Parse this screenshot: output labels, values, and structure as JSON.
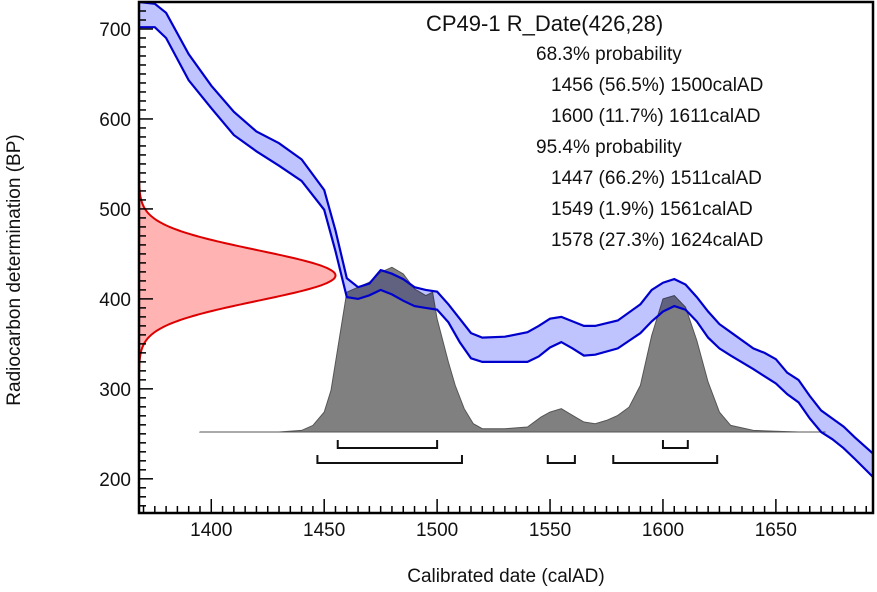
{
  "chart_data": {
    "type": "area",
    "title": "CP49-1 R_Date(426,28)",
    "xlabel": "Calibrated date (calAD)",
    "ylabel": "Radiocarbon determination (BP)",
    "xlim": [
      1368,
      1693
    ],
    "ylim": [
      162,
      730
    ],
    "x_ticks": [
      1400,
      1450,
      1500,
      1550,
      1600,
      1650
    ],
    "y_ticks": [
      200,
      300,
      400,
      500,
      600,
      700
    ],
    "grid": false,
    "measurement": {
      "name": "R_Date",
      "mean_bp": 426,
      "sigma_bp": 28,
      "color": "#dd0000",
      "fill": "#ffb3b3"
    },
    "calibration_curve": {
      "color": "#0000cc",
      "fill": "#aab0ff",
      "x": [
        1368,
        1375,
        1380,
        1390,
        1400,
        1410,
        1420,
        1430,
        1440,
        1450,
        1455,
        1460,
        1465,
        1470,
        1475,
        1480,
        1485,
        1490,
        1495,
        1500,
        1505,
        1510,
        1515,
        1520,
        1530,
        1540,
        1545,
        1550,
        1555,
        1560,
        1565,
        1570,
        1580,
        1590,
        1595,
        1600,
        1605,
        1610,
        1615,
        1620,
        1625,
        1630,
        1640,
        1645,
        1650,
        1655,
        1660,
        1665,
        1670,
        1675,
        1680,
        1685,
        1693
      ],
      "upper": [
        730,
        728,
        718,
        672,
        637,
        608,
        586,
        573,
        555,
        521,
        476,
        423,
        413,
        417,
        432,
        428,
        422,
        413,
        410,
        408,
        394,
        378,
        362,
        357,
        358,
        363,
        370,
        378,
        380,
        375,
        370,
        370,
        376,
        394,
        410,
        418,
        422,
        416,
        402,
        386,
        372,
        363,
        345,
        340,
        333,
        318,
        310,
        292,
        276,
        267,
        258,
        246,
        228
      ],
      "lower": [
        702,
        702,
        690,
        643,
        612,
        582,
        564,
        548,
        531,
        499,
        453,
        402,
        400,
        404,
        410,
        405,
        398,
        392,
        390,
        388,
        374,
        352,
        334,
        330,
        330,
        330,
        336,
        346,
        352,
        345,
        337,
        338,
        345,
        362,
        375,
        386,
        392,
        388,
        375,
        357,
        345,
        337,
        322,
        314,
        306,
        294,
        285,
        267,
        252,
        244,
        234,
        222,
        202
      ]
    },
    "posterior": {
      "color": "#808080",
      "baseline_bp": 252,
      "peak_bp": 437,
      "x": [
        1395,
        1430,
        1440,
        1445,
        1450,
        1453,
        1456,
        1460,
        1465,
        1470,
        1475,
        1480,
        1485,
        1490,
        1495,
        1498,
        1500,
        1505,
        1508,
        1512,
        1516,
        1520,
        1530,
        1540,
        1546,
        1550,
        1555,
        1560,
        1565,
        1570,
        1575,
        1580,
        1585,
        1590,
        1595,
        1600,
        1605,
        1610,
        1615,
        1620,
        1625,
        1630,
        1640,
        1650,
        1660,
        1672
      ],
      "density": [
        0,
        0,
        0.01,
        0.04,
        0.12,
        0.25,
        0.5,
        0.84,
        0.87,
        0.9,
        0.96,
        0.99,
        0.95,
        0.86,
        0.82,
        0.84,
        0.68,
        0.42,
        0.28,
        0.14,
        0.05,
        0.02,
        0.02,
        0.03,
        0.09,
        0.12,
        0.14,
        0.1,
        0.06,
        0.05,
        0.07,
        0.1,
        0.15,
        0.28,
        0.58,
        0.8,
        0.82,
        0.75,
        0.55,
        0.3,
        0.12,
        0.04,
        0.01,
        0.005,
        0,
        0
      ]
    },
    "ranges_68": [
      [
        1456,
        1500
      ],
      [
        1600,
        1611
      ]
    ],
    "ranges_95": [
      [
        1447,
        1511
      ],
      [
        1549,
        1561
      ],
      [
        1578,
        1624
      ]
    ],
    "annotations": [
      {
        "text": "68.3% probability",
        "indent": 0
      },
      {
        "text": "1456 (56.5%) 1500calAD",
        "indent": 1
      },
      {
        "text": "1600 (11.7%) 1611calAD",
        "indent": 1
      },
      {
        "text": "95.4% probability",
        "indent": 0
      },
      {
        "text": "1447 (66.2%) 1511calAD",
        "indent": 1
      },
      {
        "text": "1549 (1.9%) 1561calAD",
        "indent": 1
      },
      {
        "text": "1578 (27.3%) 1624calAD",
        "indent": 1
      }
    ]
  }
}
